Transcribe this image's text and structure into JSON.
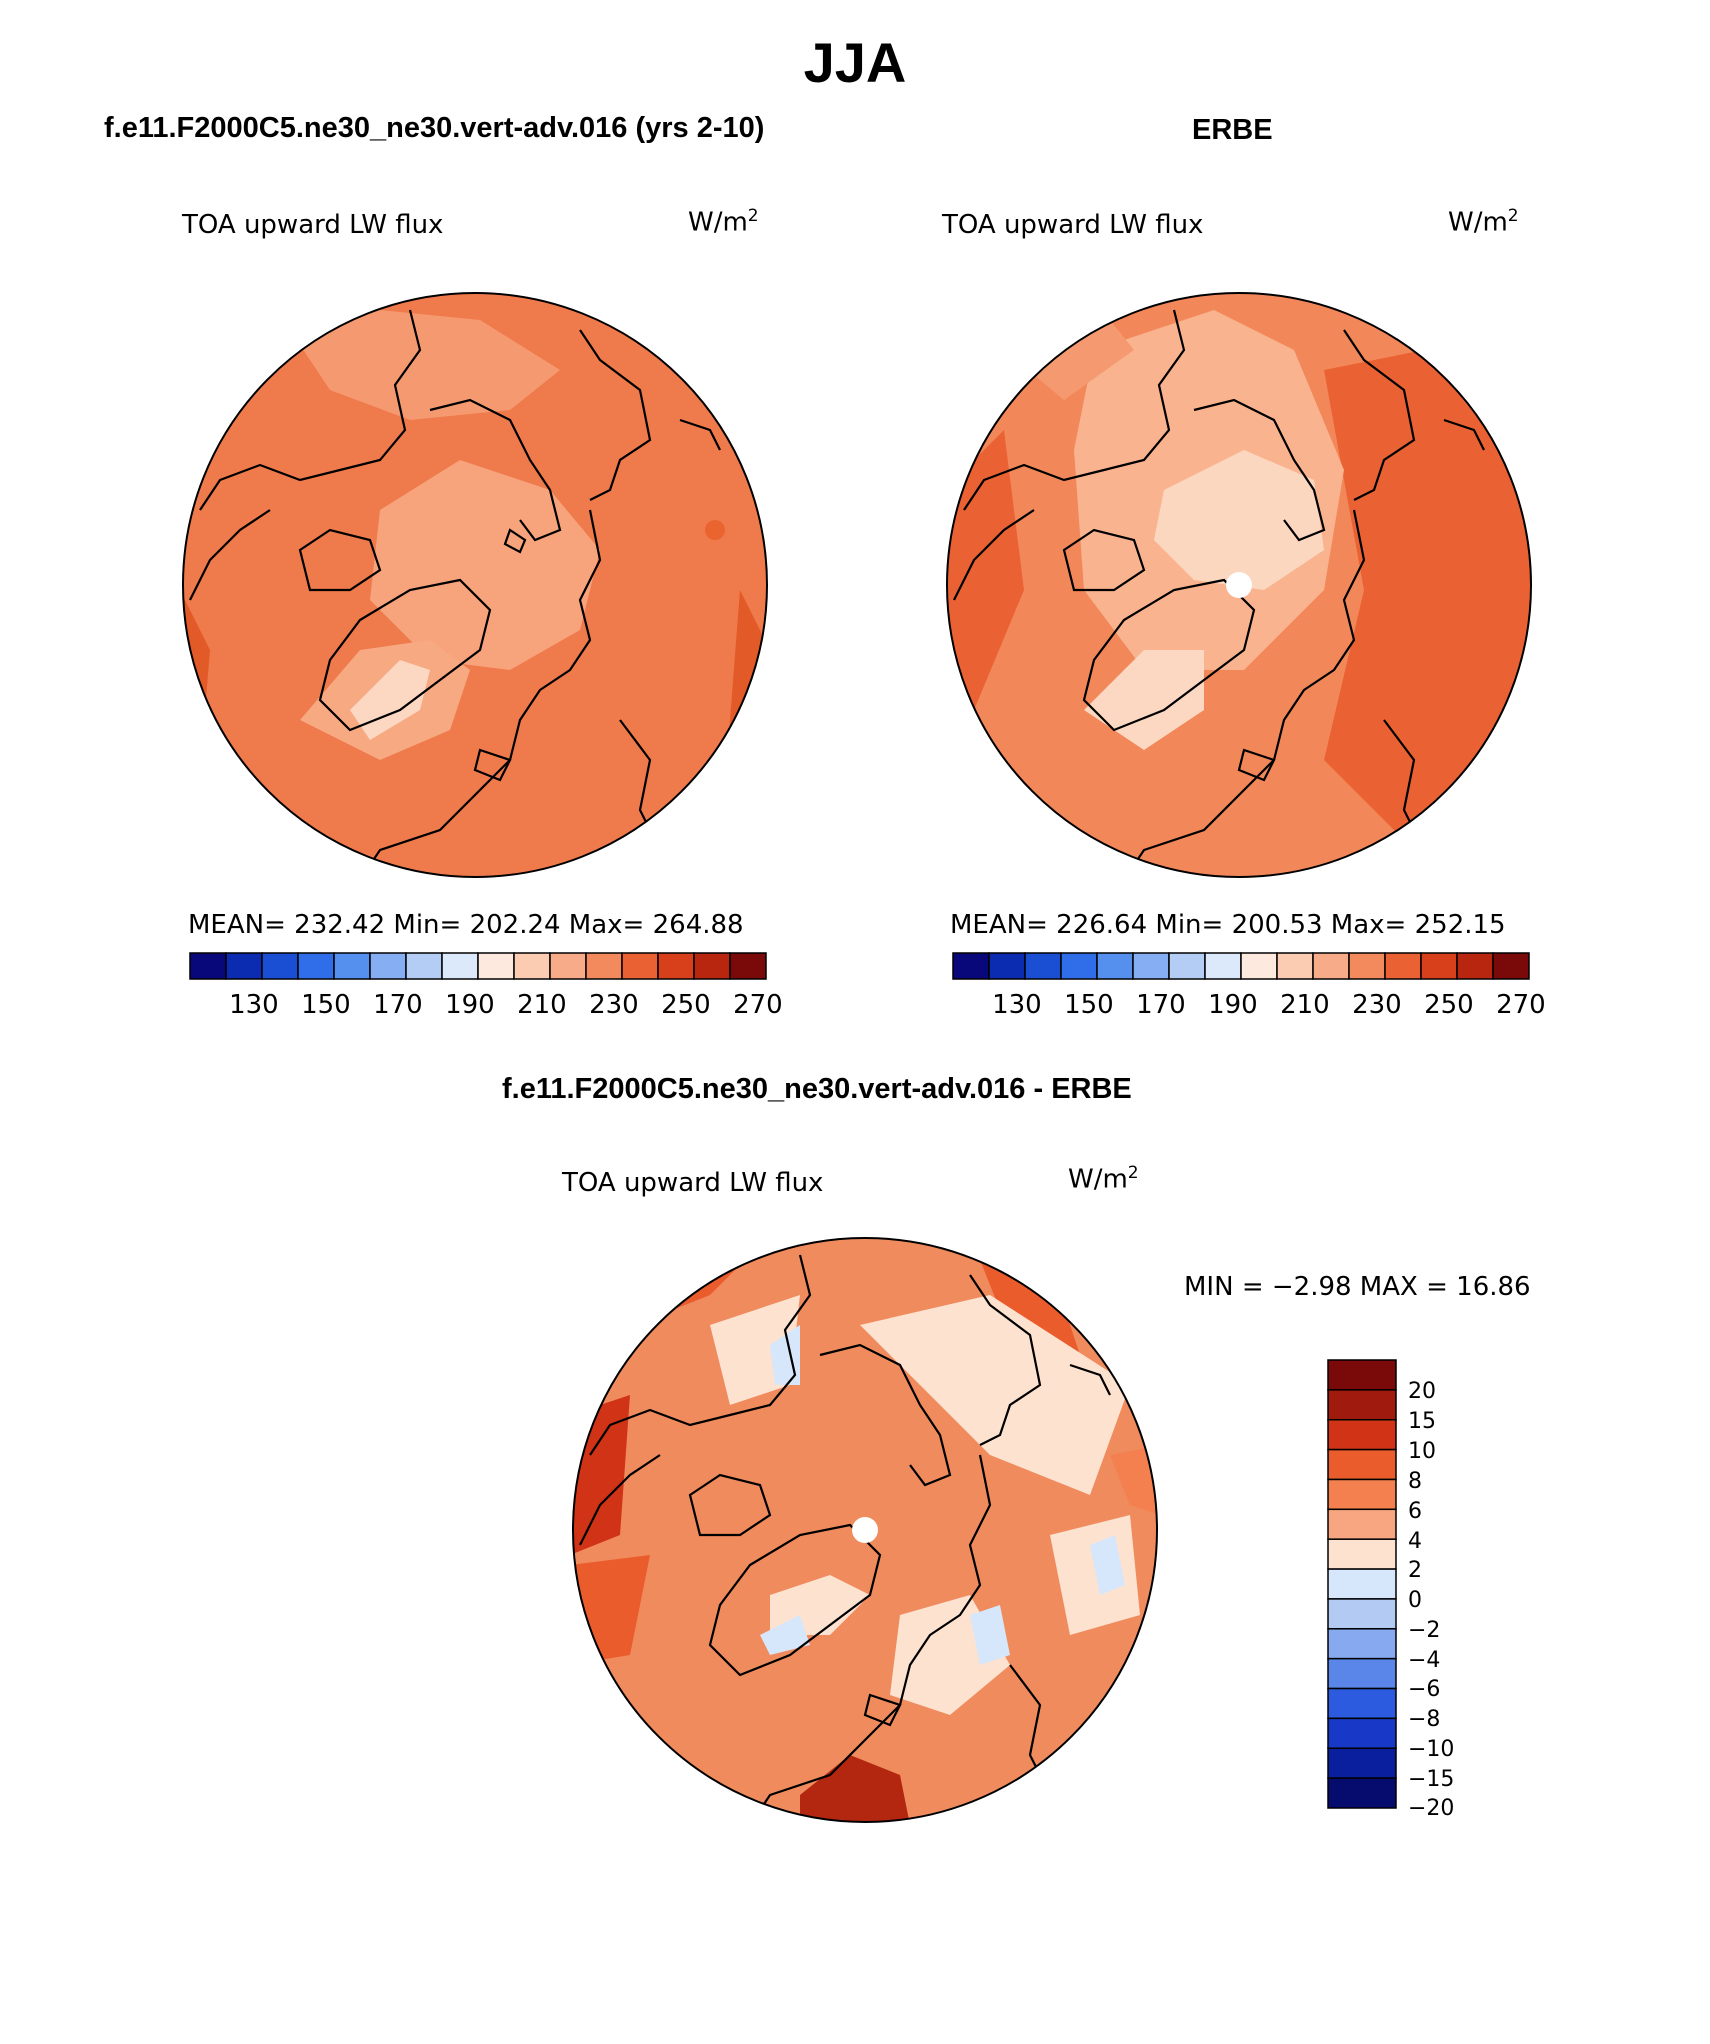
{
  "figure_title": "JJA",
  "panels": [
    {
      "title": "f.e11.F2000C5.ne30_ne30.vert-adv.016 (yrs 2-10)",
      "variable_label": "TOA upward LW flux",
      "units": "W/m",
      "units_sup": "2",
      "stats": "MEAN= 232.42   Min= 202.24   Max= 264.88",
      "colorbar_ticks": [
        "130",
        "150",
        "170",
        "190",
        "210",
        "230",
        "250",
        "270"
      ]
    },
    {
      "title": "ERBE",
      "variable_label": "TOA upward LW flux",
      "units": "W/m",
      "units_sup": "2",
      "stats": "MEAN= 226.64   Min= 200.53   Max= 252.15",
      "colorbar_ticks": [
        "130",
        "150",
        "170",
        "190",
        "210",
        "230",
        "250",
        "270"
      ]
    }
  ],
  "diff_panel": {
    "title": "f.e11.F2000C5.ne30_ne30.vert-adv.016 - ERBE",
    "variable_label": "TOA upward LW flux",
    "units": "W/m",
    "units_sup": "2",
    "minmax": "MIN =   −2.98  MAX =   16.86",
    "colorbar_ticks": [
      "20",
      "15",
      "10",
      "8",
      "6",
      "4",
      "2",
      "0",
      "−2",
      "−4",
      "−6",
      "−8",
      "−10",
      "−15",
      "−20"
    ]
  },
  "colors": {
    "abs_scale": [
      "#08087a",
      "#0b2bb0",
      "#1a4fd4",
      "#2f6ee8",
      "#5590ef",
      "#86aef2",
      "#b3cdf5",
      "#dce9fb",
      "#fde9de",
      "#fbcbb2",
      "#f8ab88",
      "#f38a5e",
      "#ea6233",
      "#d8401b",
      "#b82610",
      "#7a0a0a"
    ],
    "diff_scale_top_to_bottom": [
      "#7a0a0a",
      "#a11a0e",
      "#d13316",
      "#ea5c2c",
      "#f3804e",
      "#f8a681",
      "#fde2d0",
      "#d6e6fb",
      "#b3cbf3",
      "#86a9ef",
      "#5a86ea",
      "#2d5be0",
      "#1838c8",
      "#0a1f9e",
      "#050c6e"
    ],
    "map_base_left": "#ef7a4c",
    "map_base_right": "#f2875a",
    "map_base_diff": "#f08b5e",
    "coastline": "#000000"
  }
}
